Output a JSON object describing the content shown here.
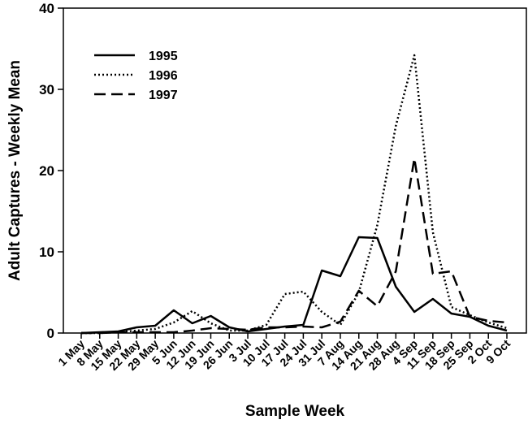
{
  "chart_data": {
    "type": "line",
    "xlabel": "Sample Week",
    "ylabel": "Adult Captures - Weekly Mean",
    "ylim": [
      0,
      40
    ],
    "yticks": [
      "0",
      "10",
      "20",
      "30",
      "40"
    ],
    "grid": false,
    "legend_position": "top-left",
    "categories": [
      "1 May",
      "8 May",
      "15 May",
      "22 May",
      "29 May",
      "5 Jun",
      "12 Jun",
      "19 Jun",
      "26 Jun",
      "3 Jul",
      "10 Jul",
      "17 Jul",
      "24 Jul",
      "31 Jul",
      "7 Aug",
      "14 Aug",
      "21 Aug",
      "28 Aug",
      "4 Sep",
      "11 Sep",
      "18 Sep",
      "25 Sep",
      "2 Oct",
      "9 Oct"
    ],
    "series": [
      {
        "name": "1995",
        "style": "solid",
        "values": [
          0,
          0.1,
          0.2,
          0.7,
          0.9,
          2.8,
          1.2,
          2.1,
          0.7,
          0.2,
          0.5,
          0.8,
          1.0,
          7.7,
          7.0,
          11.8,
          11.7,
          5.7,
          2.6,
          4.2,
          2.4,
          2.0,
          0.9,
          0.3
        ]
      },
      {
        "name": "1996",
        "style": "dotted",
        "values": [
          0,
          0,
          0.1,
          0.3,
          0.5,
          1.3,
          2.7,
          1.2,
          0.3,
          0.3,
          1.0,
          4.8,
          5.1,
          2.6,
          1.0,
          5.0,
          13.3,
          25.5,
          34.2,
          12.4,
          3.2,
          2.2,
          1.3,
          0.6
        ]
      },
      {
        "name": "1997",
        "style": "dashed",
        "values": [
          0,
          0,
          0.1,
          0.1,
          0.1,
          0.1,
          0.3,
          0.6,
          0.5,
          0.4,
          0.7,
          0.7,
          0.8,
          0.7,
          1.4,
          5.2,
          3.3,
          7.6,
          21.5,
          7.3,
          7.6,
          2.0,
          1.5,
          1.3
        ]
      }
    ]
  }
}
